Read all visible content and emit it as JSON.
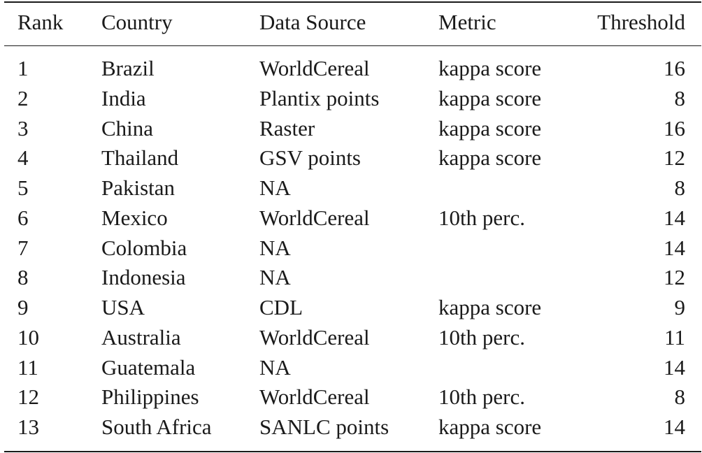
{
  "table": {
    "columns": [
      "Rank",
      "Country",
      "Data Source",
      "Metric",
      "Threshold"
    ],
    "rows": [
      {
        "rank": "1",
        "country": "Brazil",
        "source": "WorldCereal",
        "metric": "kappa score",
        "threshold": "16"
      },
      {
        "rank": "2",
        "country": "India",
        "source": "Plantix points",
        "metric": "kappa score",
        "threshold": "8"
      },
      {
        "rank": "3",
        "country": "China",
        "source": "Raster",
        "metric": "kappa score",
        "threshold": "16"
      },
      {
        "rank": "4",
        "country": "Thailand",
        "source": "GSV points",
        "metric": "kappa score",
        "threshold": "12"
      },
      {
        "rank": "5",
        "country": "Pakistan",
        "source": "NA",
        "metric": "",
        "threshold": "8"
      },
      {
        "rank": "6",
        "country": "Mexico",
        "source": "WorldCereal",
        "metric": "10th perc.",
        "threshold": "14"
      },
      {
        "rank": "7",
        "country": "Colombia",
        "source": "NA",
        "metric": "",
        "threshold": "14"
      },
      {
        "rank": "8",
        "country": "Indonesia",
        "source": "NA",
        "metric": "",
        "threshold": "12"
      },
      {
        "rank": "9",
        "country": "USA",
        "source": "CDL",
        "metric": "kappa score",
        "threshold": "9"
      },
      {
        "rank": "10",
        "country": "Australia",
        "source": "WorldCereal",
        "metric": "10th perc.",
        "threshold": "11"
      },
      {
        "rank": "11",
        "country": "Guatemala",
        "source": "NA",
        "metric": "",
        "threshold": "14"
      },
      {
        "rank": "12",
        "country": "Philippines",
        "source": "WorldCereal",
        "metric": "10th perc.",
        "threshold": "8"
      },
      {
        "rank": "13",
        "country": "South Africa",
        "source": "SANLC points",
        "metric": "kappa score",
        "threshold": "14"
      }
    ]
  }
}
